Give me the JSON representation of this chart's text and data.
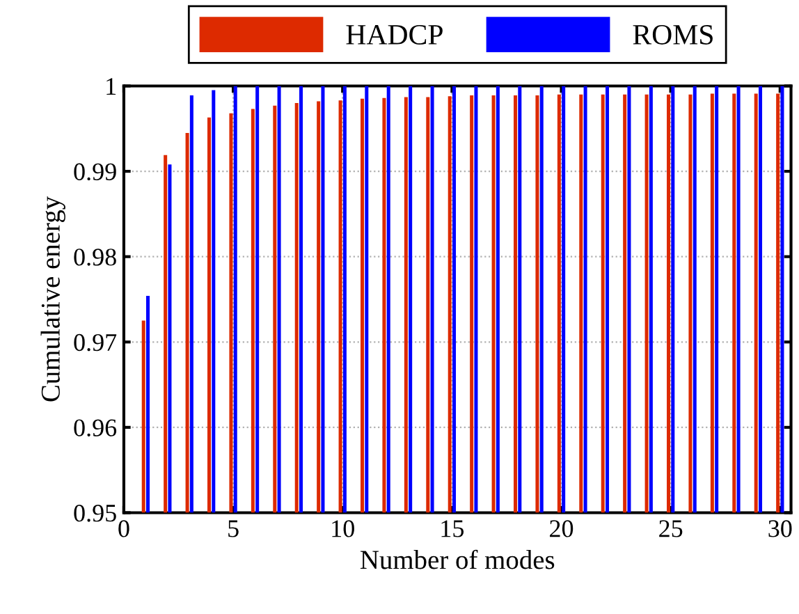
{
  "chart_data": {
    "type": "bar",
    "xlabel": "Number of modes",
    "ylabel": "Cumulative energy",
    "x": [
      1,
      2,
      3,
      4,
      5,
      6,
      7,
      8,
      9,
      10,
      11,
      12,
      13,
      14,
      15,
      16,
      17,
      18,
      19,
      20,
      21,
      22,
      23,
      24,
      25,
      26,
      27,
      28,
      29,
      30
    ],
    "series": [
      {
        "name": "HADCP",
        "color": "#dd2a00",
        "values": [
          0.9725,
          0.9919,
          0.9945,
          0.9963,
          0.9968,
          0.9973,
          0.9977,
          0.998,
          0.9982,
          0.9983,
          0.9985,
          0.9986,
          0.9987,
          0.9987,
          0.9988,
          0.9989,
          0.9989,
          0.9989,
          0.9989,
          0.999,
          0.999,
          0.999,
          0.999,
          0.999,
          0.999,
          0.999,
          0.9991,
          0.9991,
          0.9991,
          0.9991
        ]
      },
      {
        "name": "ROMS",
        "color": "#0000ff",
        "values": [
          0.9754,
          0.9908,
          0.9989,
          0.9995,
          1,
          1,
          1,
          1,
          1,
          1,
          1,
          1,
          1,
          1,
          1,
          1,
          1,
          1,
          1,
          1,
          1,
          1,
          1,
          1,
          1,
          1,
          1,
          1,
          1,
          1
        ]
      }
    ],
    "xlim": [
      0,
      30.5
    ],
    "xticks": [
      0,
      5,
      10,
      15,
      20,
      25,
      30
    ],
    "ylim": [
      0.95,
      1
    ],
    "yticks": [
      0.95,
      0.96,
      0.97,
      0.98,
      0.99,
      {
        "value": 1,
        "label": "1"
      }
    ],
    "grid": true,
    "legend": "top"
  }
}
